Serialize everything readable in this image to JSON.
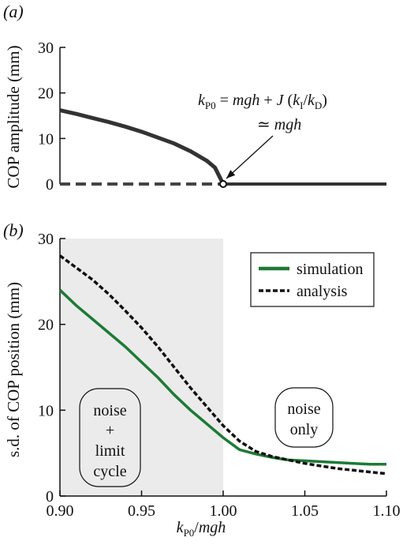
{
  "chart_data": [
    {
      "panel": "(a)",
      "type": "line",
      "ylabel": "COP amplitude (mm)",
      "xlim": [
        0.9,
        1.1
      ],
      "ylim": [
        0,
        30
      ],
      "y_ticks": [
        "0",
        "10",
        "20",
        "30"
      ],
      "annotation": {
        "line1": "k_P0 = mgh + J (k_I/k_D)",
        "line2": "≃ mgh",
        "bifurcation_x": 1.0
      },
      "series": [
        {
          "role": "stable-branch",
          "style": "solid",
          "x": [
            0.9,
            0.91,
            0.92,
            0.93,
            0.94,
            0.95,
            0.96,
            0.97,
            0.98,
            0.99,
            0.995,
            1.0
          ],
          "y": [
            16.2,
            15.4,
            14.5,
            13.6,
            12.6,
            11.5,
            10.2,
            8.9,
            7.2,
            5.1,
            3.6,
            0
          ]
        },
        {
          "role": "zero-branch-unstable",
          "style": "dashed",
          "x": [
            0.9,
            1.0
          ],
          "y": [
            0,
            0
          ]
        },
        {
          "role": "zero-branch-stable",
          "style": "solid",
          "x": [
            1.0,
            1.1
          ],
          "y": [
            0,
            0
          ]
        }
      ]
    },
    {
      "panel": "(b)",
      "type": "line",
      "ylabel": "s.d. of COP position (mm)",
      "xlabel": "k_P0/mgh",
      "xlim": [
        0.9,
        1.1
      ],
      "ylim": [
        0,
        30
      ],
      "x_ticks": [
        "0.90",
        "0.95",
        "1.00",
        "1.05",
        "1.10"
      ],
      "y_ticks": [
        "0",
        "10",
        "20",
        "30"
      ],
      "shaded_region": {
        "x": [
          0.9,
          1.0
        ],
        "color": "#ebebeb"
      },
      "region_labels": {
        "left": [
          "noise",
          "+",
          "limit",
          "cycle"
        ],
        "right": [
          "noise",
          "only"
        ]
      },
      "legend_position": "top-right",
      "series": [
        {
          "name": "simulation",
          "color": "#1d7a35",
          "style": "solid",
          "x": [
            0.9,
            0.91,
            0.92,
            0.93,
            0.94,
            0.95,
            0.96,
            0.97,
            0.98,
            0.99,
            1.0,
            1.01,
            1.02,
            1.03,
            1.04,
            1.05,
            1.06,
            1.07,
            1.08,
            1.09,
            1.1
          ],
          "y": [
            24.0,
            22.2,
            20.6,
            19.0,
            17.4,
            15.6,
            13.8,
            11.8,
            10.0,
            8.4,
            6.8,
            5.4,
            4.9,
            4.5,
            4.2,
            4.1,
            4.0,
            3.9,
            3.8,
            3.7,
            3.7
          ]
        },
        {
          "name": "analysis",
          "color": "#111111",
          "style": "dashed",
          "x": [
            0.9,
            0.91,
            0.92,
            0.93,
            0.94,
            0.95,
            0.96,
            0.97,
            0.98,
            0.99,
            1.0,
            1.01,
            1.02,
            1.03,
            1.04,
            1.05,
            1.06,
            1.07,
            1.08,
            1.09,
            1.1
          ],
          "y": [
            28.0,
            26.6,
            25.2,
            23.5,
            21.6,
            19.6,
            17.4,
            15.0,
            12.6,
            10.4,
            8.2,
            6.4,
            5.2,
            4.6,
            4.2,
            3.8,
            3.5,
            3.2,
            3.0,
            2.8,
            2.6
          ]
        }
      ]
    }
  ]
}
